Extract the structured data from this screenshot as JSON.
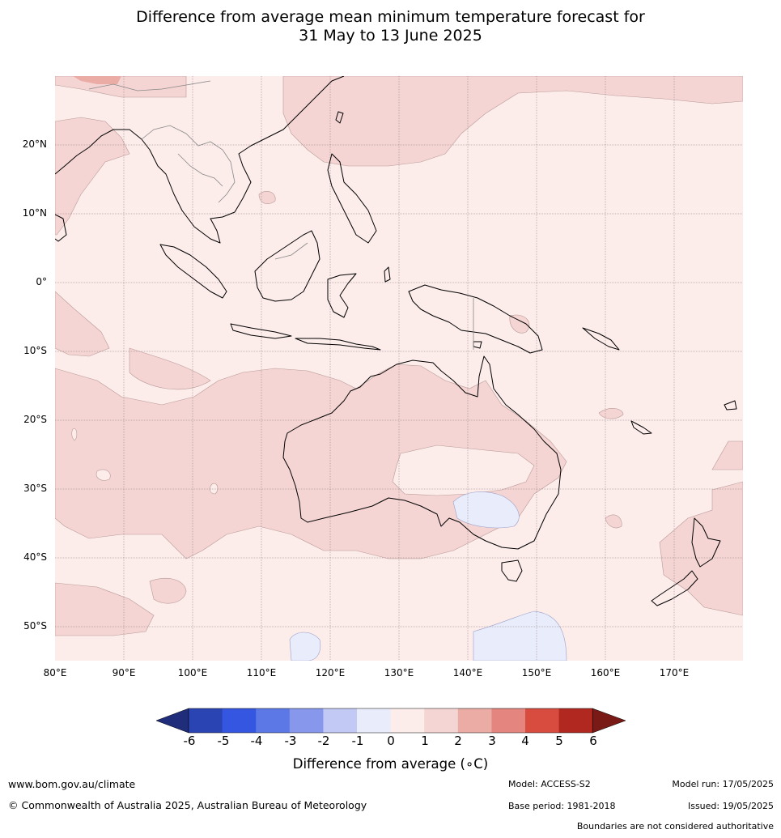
{
  "title_line1": "Difference from average mean minimum temperature forecast for",
  "title_line2": "31 May to 13 June 2025",
  "map": {
    "lon_range": [
      80,
      180
    ],
    "lat_range": [
      -55,
      30
    ],
    "lat_labels": [
      "20°N",
      "10°N",
      "0°",
      "10°S",
      "20°S",
      "30°S",
      "40°S",
      "50°S"
    ],
    "lon_labels": [
      "80°E",
      "90°E",
      "100°E",
      "110°E",
      "120°E",
      "130°E",
      "140°E",
      "150°E",
      "160°E",
      "170°E"
    ],
    "land_outline_color": "#000000",
    "border_color": "#888888",
    "grid_color": "#a08f8f"
  },
  "colorbar": {
    "ticks": [
      "-6",
      "-5",
      "-4",
      "-3",
      "-2",
      "-1",
      "0",
      "1",
      "2",
      "3",
      "4",
      "5",
      "6"
    ],
    "colors": [
      "#1f2d7a",
      "#2b44b4",
      "#3456e0",
      "#5b78e6",
      "#8798ec",
      "#c2c9f4",
      "#e9ecfb",
      "#fcecea",
      "#f4d5d3",
      "#ebaca6",
      "#e4867f",
      "#d84c40",
      "#b0281f",
      "#7a1a16"
    ],
    "label": "Difference from average (∘C)"
  },
  "footer": {
    "website": "www.bom.gov.au/climate",
    "copyright": "© Commonwealth of Australia 2025, Australian Bureau of Meteorology",
    "model": "Model: ACCESS-S2",
    "base_period": "Base period: 1981-2018",
    "model_run": "Model run: 17/05/2025",
    "issued": "Issued: 19/05/2025",
    "boundaries": "Boundaries are not considered authoritative"
  }
}
